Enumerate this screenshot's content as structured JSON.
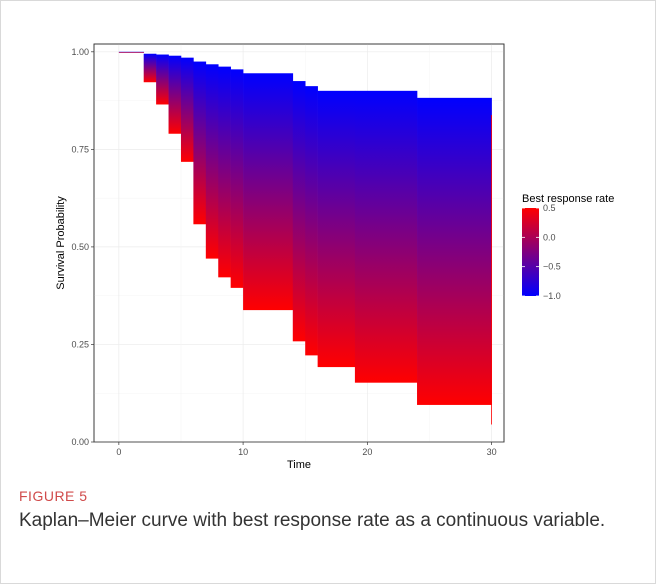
{
  "figure": {
    "label": "FIGURE 5",
    "caption": "Kaplan–Meier curve with best response rate as a continuous variable."
  },
  "chart_data": {
    "type": "area",
    "xlabel": "Time",
    "ylabel": "Survival Probability",
    "xlim": [
      -2,
      31
    ],
    "ylim": [
      0,
      1.02
    ],
    "x_ticks": [
      0,
      10,
      20,
      30
    ],
    "y_ticks": [
      "0.00",
      "0.25",
      "0.50",
      "0.75",
      "1.00"
    ],
    "grid": true,
    "legend": {
      "title": "Best response rate",
      "placement": "right",
      "min": -1.0,
      "max": 0.5,
      "labels": [
        "0.5",
        "0.0",
        "−0.5",
        "−1.0"
      ],
      "label_values": [
        0.5,
        0.0,
        -0.5,
        -1.0
      ],
      "low_color": "#0000ff",
      "high_color": "#ff0000"
    },
    "series": [
      {
        "name": "upper",
        "color": "#0000ff",
        "x": [
          0,
          2,
          3,
          4,
          5,
          6,
          7,
          8,
          9,
          10,
          14,
          15,
          16,
          19,
          24,
          30
        ],
        "y": [
          1.0,
          0.995,
          0.993,
          0.99,
          0.985,
          0.975,
          0.968,
          0.962,
          0.955,
          0.945,
          0.925,
          0.912,
          0.9,
          0.9,
          0.882,
          0.838
        ]
      },
      {
        "name": "lower",
        "color": "#ff0000",
        "x": [
          0,
          2,
          3,
          4,
          5,
          6,
          7,
          8,
          9,
          10,
          14,
          15,
          16,
          19,
          24,
          30
        ],
        "y": [
          1.0,
          0.922,
          0.865,
          0.79,
          0.718,
          0.558,
          0.47,
          0.422,
          0.395,
          0.338,
          0.258,
          0.222,
          0.192,
          0.152,
          0.095,
          0.045
        ]
      }
    ]
  }
}
